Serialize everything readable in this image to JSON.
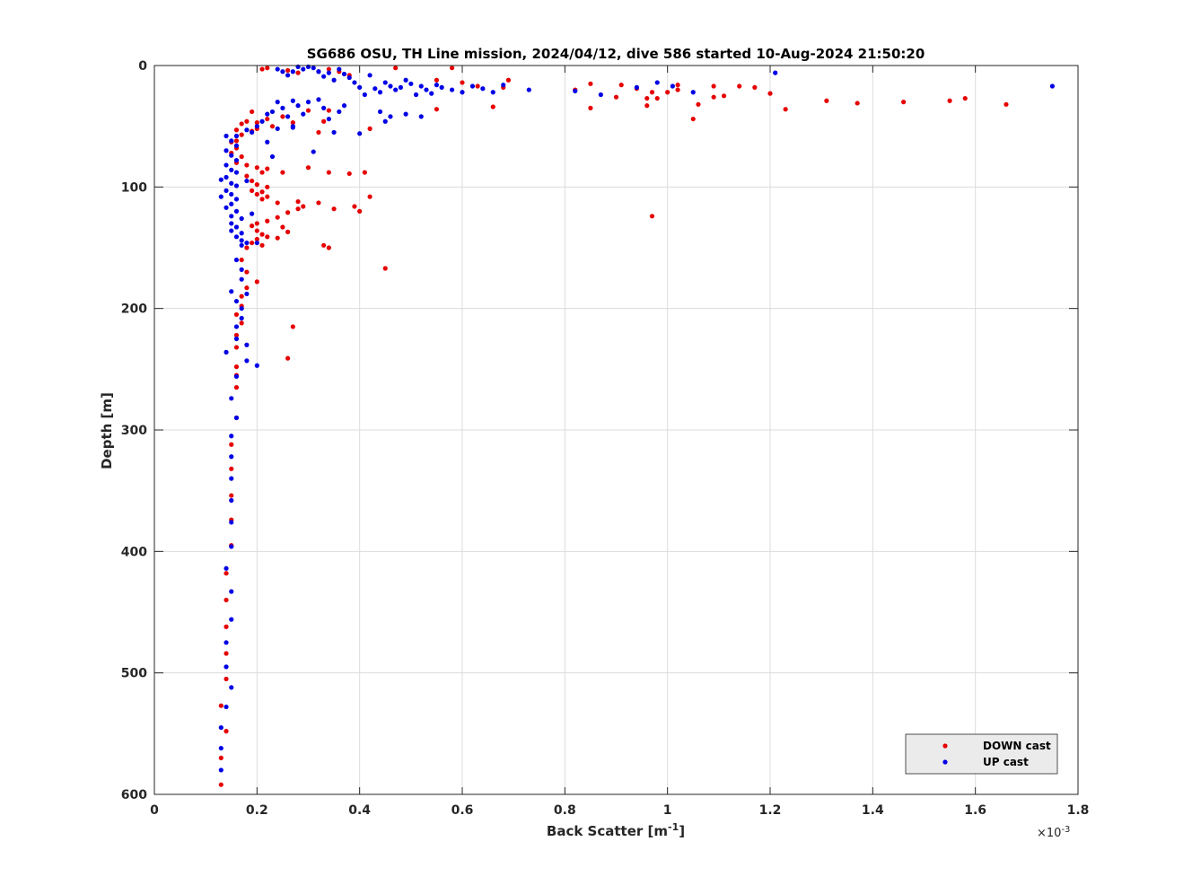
{
  "chart_data": {
    "type": "scatter",
    "title": "SG686 OSU, TH Line mission, 2024/04/12, dive 586 started 10-Aug-2024 21:50:20",
    "xlabel_main": "Back Scatter [m",
    "xlabel_sup": "-1",
    "xlabel_end": "]",
    "ylabel": "Depth [m]",
    "exponent_base": "×10",
    "exponent_power": "-3",
    "xlim": [
      0,
      1.8
    ],
    "ylim": [
      0,
      600
    ],
    "y_reversed": true,
    "x_ticks": [
      0,
      0.2,
      0.4,
      0.6,
      0.8,
      1,
      1.2,
      1.4,
      1.6,
      1.8
    ],
    "x_tick_labels": [
      "0",
      "0.2",
      "0.4",
      "0.6",
      "0.8",
      "1",
      "1.2",
      "1.4",
      "1.6",
      "1.8"
    ],
    "y_ticks": [
      0,
      100,
      200,
      300,
      400,
      500,
      600
    ],
    "y_tick_labels": [
      "0",
      "100",
      "200",
      "300",
      "400",
      "500",
      "600"
    ],
    "grid": true,
    "legend_position": "bottom-right",
    "series": [
      {
        "name": "DOWN cast",
        "color": "#e60000",
        "points": [
          [
            0.21,
            3
          ],
          [
            0.22,
            2
          ],
          [
            0.26,
            4
          ],
          [
            0.28,
            6
          ],
          [
            0.32,
            5
          ],
          [
            0.34,
            3
          ],
          [
            0.36,
            5
          ],
          [
            0.38,
            8
          ],
          [
            0.47,
            2
          ],
          [
            0.58,
            2
          ],
          [
            0.55,
            12
          ],
          [
            0.6,
            14
          ],
          [
            0.69,
            12
          ],
          [
            0.68,
            18
          ],
          [
            0.63,
            17
          ],
          [
            0.66,
            34
          ],
          [
            0.55,
            36
          ],
          [
            0.82,
            20
          ],
          [
            0.85,
            15
          ],
          [
            0.85,
            35
          ],
          [
            0.9,
            26
          ],
          [
            0.91,
            16
          ],
          [
            0.94,
            19
          ],
          [
            0.96,
            27
          ],
          [
            0.97,
            22
          ],
          [
            0.96,
            33
          ],
          [
            0.98,
            27
          ],
          [
            1.0,
            22
          ],
          [
            1.02,
            16
          ],
          [
            1.02,
            20
          ],
          [
            1.05,
            44
          ],
          [
            1.06,
            32
          ],
          [
            1.09,
            17
          ],
          [
            1.09,
            26
          ],
          [
            1.11,
            25
          ],
          [
            1.14,
            17
          ],
          [
            1.17,
            18
          ],
          [
            1.2,
            23
          ],
          [
            1.23,
            36
          ],
          [
            1.31,
            29
          ],
          [
            1.37,
            31
          ],
          [
            1.46,
            30
          ],
          [
            1.55,
            29
          ],
          [
            1.58,
            27
          ],
          [
            1.66,
            32
          ],
          [
            0.97,
            124
          ],
          [
            0.45,
            167
          ],
          [
            0.42,
            52
          ],
          [
            0.32,
            55
          ],
          [
            0.3,
            37
          ],
          [
            0.34,
            37
          ],
          [
            0.33,
            46
          ],
          [
            0.27,
            47
          ],
          [
            0.25,
            42
          ],
          [
            0.22,
            44
          ],
          [
            0.2,
            47
          ],
          [
            0.18,
            46
          ],
          [
            0.17,
            48
          ],
          [
            0.19,
            38
          ],
          [
            0.23,
            50
          ],
          [
            0.2,
            52
          ],
          [
            0.19,
            54
          ],
          [
            0.16,
            53
          ],
          [
            0.17,
            57
          ],
          [
            0.16,
            62
          ],
          [
            0.15,
            63
          ],
          [
            0.16,
            68
          ],
          [
            0.15,
            72
          ],
          [
            0.17,
            75
          ],
          [
            0.16,
            80
          ],
          [
            0.18,
            82
          ],
          [
            0.2,
            84
          ],
          [
            0.22,
            85
          ],
          [
            0.25,
            88
          ],
          [
            0.3,
            84
          ],
          [
            0.34,
            88
          ],
          [
            0.38,
            89
          ],
          [
            0.41,
            88
          ],
          [
            0.21,
            88
          ],
          [
            0.18,
            91
          ],
          [
            0.19,
            95
          ],
          [
            0.2,
            98
          ],
          [
            0.22,
            100
          ],
          [
            0.21,
            104
          ],
          [
            0.22,
            108
          ],
          [
            0.2,
            106
          ],
          [
            0.19,
            103
          ],
          [
            0.21,
            110
          ],
          [
            0.24,
            113
          ],
          [
            0.28,
            112
          ],
          [
            0.29,
            116
          ],
          [
            0.32,
            113
          ],
          [
            0.35,
            118
          ],
          [
            0.39,
            116
          ],
          [
            0.4,
            120
          ],
          [
            0.42,
            108
          ],
          [
            0.28,
            118
          ],
          [
            0.26,
            121
          ],
          [
            0.24,
            125
          ],
          [
            0.22,
            128
          ],
          [
            0.2,
            130
          ],
          [
            0.19,
            132
          ],
          [
            0.2,
            136
          ],
          [
            0.21,
            139
          ],
          [
            0.22,
            141
          ],
          [
            0.2,
            143
          ],
          [
            0.19,
            146
          ],
          [
            0.21,
            148
          ],
          [
            0.18,
            150
          ],
          [
            0.25,
            133
          ],
          [
            0.26,
            137
          ],
          [
            0.24,
            142
          ],
          [
            0.33,
            148
          ],
          [
            0.34,
            150
          ],
          [
            0.17,
            160
          ],
          [
            0.18,
            170
          ],
          [
            0.2,
            178
          ],
          [
            0.18,
            183
          ],
          [
            0.17,
            190
          ],
          [
            0.17,
            198
          ],
          [
            0.16,
            205
          ],
          [
            0.17,
            212
          ],
          [
            0.27,
            215
          ],
          [
            0.16,
            222
          ],
          [
            0.16,
            232
          ],
          [
            0.26,
            241
          ],
          [
            0.16,
            248
          ],
          [
            0.16,
            255
          ],
          [
            0.16,
            265
          ],
          [
            0.16,
            290
          ],
          [
            0.15,
            312
          ],
          [
            0.15,
            332
          ],
          [
            0.15,
            354
          ],
          [
            0.15,
            374
          ],
          [
            0.15,
            395
          ],
          [
            0.14,
            418
          ],
          [
            0.14,
            440
          ],
          [
            0.14,
            462
          ],
          [
            0.14,
            484
          ],
          [
            0.14,
            505
          ],
          [
            0.13,
            527
          ],
          [
            0.14,
            548
          ],
          [
            0.13,
            570
          ],
          [
            0.13,
            592
          ]
        ]
      },
      {
        "name": "UP cast",
        "color": "#0000e6",
        "points": [
          [
            1.75,
            17
          ],
          [
            1.21,
            6
          ],
          [
            0.98,
            14
          ],
          [
            1.01,
            17
          ],
          [
            1.05,
            22
          ],
          [
            0.94,
            18
          ],
          [
            0.87,
            24
          ],
          [
            0.82,
            21
          ],
          [
            0.73,
            20
          ],
          [
            0.68,
            16
          ],
          [
            0.66,
            22
          ],
          [
            0.64,
            19
          ],
          [
            0.62,
            17
          ],
          [
            0.6,
            22
          ],
          [
            0.58,
            20
          ],
          [
            0.56,
            18
          ],
          [
            0.55,
            16
          ],
          [
            0.54,
            23
          ],
          [
            0.53,
            20
          ],
          [
            0.52,
            17
          ],
          [
            0.51,
            24
          ],
          [
            0.5,
            15
          ],
          [
            0.49,
            12
          ],
          [
            0.48,
            18
          ],
          [
            0.47,
            20
          ],
          [
            0.46,
            17
          ],
          [
            0.45,
            14
          ],
          [
            0.44,
            22
          ],
          [
            0.43,
            19
          ],
          [
            0.42,
            8
          ],
          [
            0.41,
            24
          ],
          [
            0.4,
            18
          ],
          [
            0.39,
            14
          ],
          [
            0.38,
            10
          ],
          [
            0.37,
            7
          ],
          [
            0.36,
            3
          ],
          [
            0.35,
            12
          ],
          [
            0.34,
            6
          ],
          [
            0.33,
            9
          ],
          [
            0.32,
            5
          ],
          [
            0.31,
            2
          ],
          [
            0.3,
            1
          ],
          [
            0.29,
            3
          ],
          [
            0.28,
            1
          ],
          [
            0.27,
            5
          ],
          [
            0.26,
            8
          ],
          [
            0.25,
            5
          ],
          [
            0.24,
            3
          ],
          [
            0.52,
            42
          ],
          [
            0.49,
            40
          ],
          [
            0.46,
            42
          ],
          [
            0.44,
            38
          ],
          [
            0.45,
            46
          ],
          [
            0.4,
            56
          ],
          [
            0.37,
            33
          ],
          [
            0.36,
            38
          ],
          [
            0.35,
            55
          ],
          [
            0.34,
            44
          ],
          [
            0.33,
            35
          ],
          [
            0.32,
            28
          ],
          [
            0.3,
            30
          ],
          [
            0.29,
            40
          ],
          [
            0.28,
            33
          ],
          [
            0.27,
            29
          ],
          [
            0.26,
            42
          ],
          [
            0.25,
            35
          ],
          [
            0.24,
            30
          ],
          [
            0.23,
            38
          ],
          [
            0.22,
            40
          ],
          [
            0.21,
            46
          ],
          [
            0.2,
            50
          ],
          [
            0.24,
            52
          ],
          [
            0.27,
            50
          ],
          [
            0.22,
            63
          ],
          [
            0.23,
            75
          ],
          [
            0.31,
            71
          ],
          [
            0.27,
            51
          ],
          [
            0.19,
            55
          ],
          [
            0.18,
            53
          ],
          [
            0.16,
            58
          ],
          [
            0.14,
            58
          ],
          [
            0.15,
            62
          ],
          [
            0.16,
            66
          ],
          [
            0.14,
            70
          ],
          [
            0.15,
            74
          ],
          [
            0.16,
            78
          ],
          [
            0.14,
            82
          ],
          [
            0.15,
            86
          ],
          [
            0.16,
            88
          ],
          [
            0.14,
            92
          ],
          [
            0.13,
            94
          ],
          [
            0.15,
            97
          ],
          [
            0.16,
            99
          ],
          [
            0.14,
            103
          ],
          [
            0.15,
            106
          ],
          [
            0.13,
            108
          ],
          [
            0.16,
            110
          ],
          [
            0.15,
            114
          ],
          [
            0.14,
            117
          ],
          [
            0.16,
            120
          ],
          [
            0.15,
            124
          ],
          [
            0.17,
            126
          ],
          [
            0.15,
            130
          ],
          [
            0.16,
            133
          ],
          [
            0.15,
            136
          ],
          [
            0.17,
            138
          ],
          [
            0.16,
            141
          ],
          [
            0.17,
            144
          ],
          [
            0.18,
            146
          ],
          [
            0.17,
            148
          ],
          [
            0.2,
            146
          ],
          [
            0.19,
            122
          ],
          [
            0.18,
            95
          ],
          [
            0.16,
            160
          ],
          [
            0.17,
            168
          ],
          [
            0.17,
            176
          ],
          [
            0.15,
            186
          ],
          [
            0.18,
            188
          ],
          [
            0.16,
            194
          ],
          [
            0.17,
            200
          ],
          [
            0.17,
            208
          ],
          [
            0.16,
            215
          ],
          [
            0.16,
            225
          ],
          [
            0.18,
            230
          ],
          [
            0.14,
            236
          ],
          [
            0.18,
            243
          ],
          [
            0.2,
            247
          ],
          [
            0.16,
            256
          ],
          [
            0.15,
            274
          ],
          [
            0.16,
            290
          ],
          [
            0.15,
            305
          ],
          [
            0.15,
            322
          ],
          [
            0.15,
            340
          ],
          [
            0.15,
            358
          ],
          [
            0.15,
            376
          ],
          [
            0.15,
            396
          ],
          [
            0.14,
            414
          ],
          [
            0.15,
            433
          ],
          [
            0.15,
            456
          ],
          [
            0.14,
            475
          ],
          [
            0.14,
            495
          ],
          [
            0.15,
            512
          ],
          [
            0.14,
            528
          ],
          [
            0.13,
            545
          ],
          [
            0.13,
            562
          ],
          [
            0.13,
            580
          ]
        ]
      }
    ]
  }
}
